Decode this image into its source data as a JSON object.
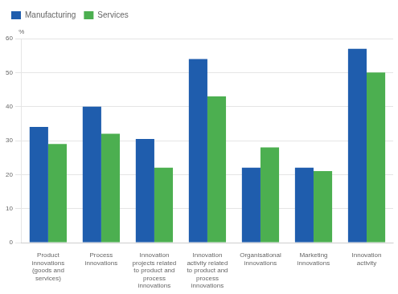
{
  "chart_data": {
    "type": "bar",
    "categories": [
      "Product\ninnovations\n(goods and\nservices)",
      "Process\ninnovations",
      "Innovation\nprojects\nrelated to\nproduct and\nprocess\ninnovations",
      "Innovation\nactivity related\nto product and\nprocess\ninnovations",
      "Organisational\ninnovations",
      "Marketing\ninnovations",
      "Innovation\nactivity"
    ],
    "series": [
      {
        "name": "Manufacturing",
        "color": "#1F5DAD",
        "values": [
          34,
          40,
          30.5,
          54,
          22,
          22,
          57
        ]
      },
      {
        "name": "Services",
        "color": "#4CAF50",
        "values": [
          29,
          32,
          22,
          43,
          28,
          21,
          50
        ]
      }
    ],
    "ylabel": "%",
    "ylim": [
      0,
      60
    ],
    "yticks": [
      0,
      10,
      20,
      30,
      40,
      50,
      60
    ],
    "grid": "y",
    "legend": "upper left"
  }
}
